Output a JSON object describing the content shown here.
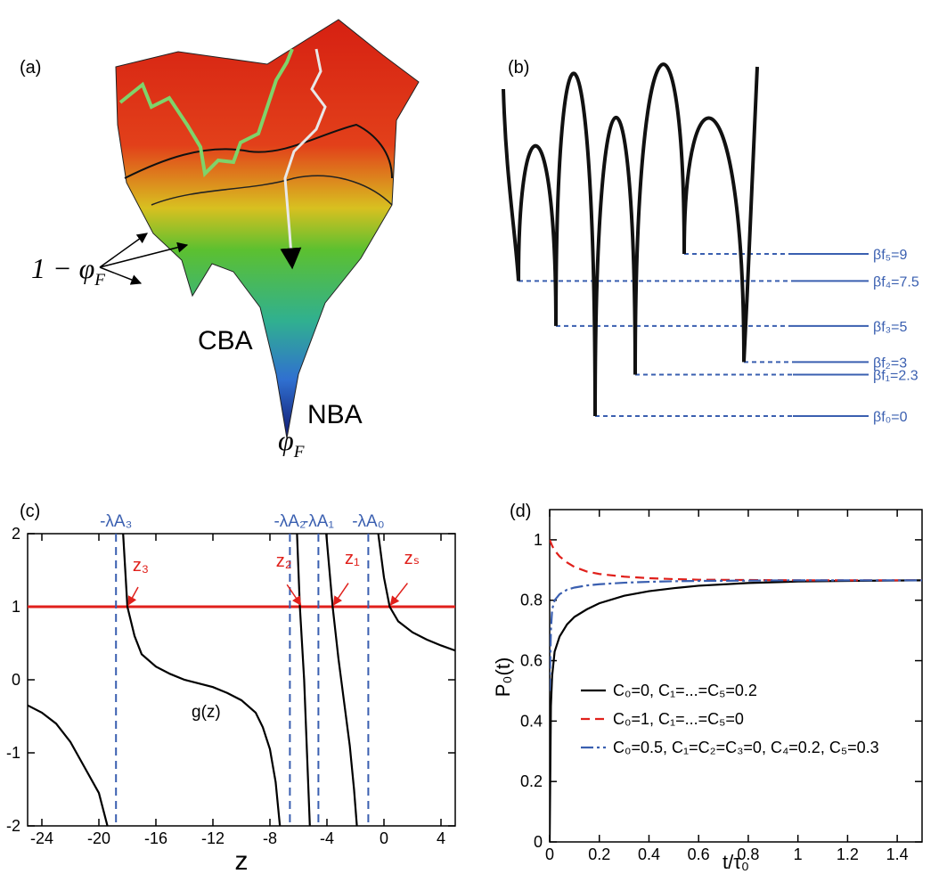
{
  "chart_data": [
    {
      "type": "image",
      "label": "(a)",
      "annotations": [
        {
          "text": "1 − φ",
          "sub": "F"
        },
        {
          "text": "CBA"
        },
        {
          "text": "NBA"
        },
        {
          "text": "φ",
          "sub": "F"
        }
      ]
    },
    {
      "type": "levels",
      "label": "(b)",
      "color": "#3a5fb0",
      "levels": [
        {
          "value": 9,
          "label": "βf₅=9"
        },
        {
          "value": 7.5,
          "label": "βf₄=7.5"
        },
        {
          "value": 5,
          "label": "βf₃=5"
        },
        {
          "value": 3,
          "label": "βf₂=3"
        },
        {
          "value": 2.3,
          "label": "βf₁=2.3"
        },
        {
          "value": 0,
          "label": "βf₀=0"
        }
      ]
    },
    {
      "type": "line",
      "label": "(c)",
      "xlabel": "z",
      "xlim": [
        -25,
        5
      ],
      "ylim": [
        -2,
        2
      ],
      "xticks": [
        -24,
        -20,
        -16,
        -12,
        -8,
        -4,
        0,
        4
      ],
      "yticks": [
        -2,
        -1,
        0,
        1,
        2
      ],
      "x": [
        -25,
        -24,
        -23,
        -22,
        -21,
        -20,
        -19.6,
        -19.4,
        -18.8,
        -18.3,
        -18,
        -17.5,
        -17,
        -16,
        -15,
        -14,
        -13,
        -12,
        -11,
        -10,
        -9,
        -8.5,
        -8,
        -7.6,
        -7.3,
        -6.6,
        -6.1,
        -5.9,
        -5.6,
        -5.4,
        -5.2,
        -4.6,
        -4.05,
        -3.6,
        -3.2,
        -2.8,
        -2.4,
        -2.1,
        -1.9,
        -1.1,
        -0.4,
        0,
        0.4,
        1,
        2,
        3,
        4,
        5
      ],
      "series": [
        {
          "name": "g(z)",
          "color": "#000000",
          "style": "solid",
          "values": [
            -0.35,
            -0.45,
            -0.6,
            -0.85,
            -1.2,
            -1.55,
            -1.85,
            -2,
            null,
            2,
            1,
            0.6,
            0.35,
            0.18,
            0.08,
            0,
            -0.05,
            -0.1,
            -0.18,
            -0.28,
            -0.45,
            -0.65,
            -0.95,
            -1.4,
            -2,
            null,
            2,
            1,
            0,
            -1,
            -2,
            null,
            2,
            1,
            0.3,
            -0.3,
            -0.9,
            -1.5,
            -2,
            null,
            2,
            1.4,
            1,
            0.8,
            0.65,
            0.55,
            0.47,
            0.4
          ]
        }
      ],
      "hlines": [
        {
          "value": 1,
          "color": "#e0201b"
        }
      ],
      "vlines": [
        {
          "x": -18.8,
          "label": "-λA₃"
        },
        {
          "x": -6.6,
          "label": "-λA₂"
        },
        {
          "x": -4.6,
          "label": "-λA₁"
        },
        {
          "x": -1.1,
          "label": "-λA₀"
        }
      ],
      "vline_color": "#3a5fb0",
      "annotations": [
        {
          "text": "z₃",
          "x": -18,
          "y": 1
        },
        {
          "text": "z₂",
          "x": -5.9,
          "y": 1
        },
        {
          "text": "z₁",
          "x": -3.6,
          "y": 1
        },
        {
          "text": "zₛ",
          "x": 0.4,
          "y": 1
        }
      ],
      "annotation_color": "#e0201b"
    },
    {
      "type": "line",
      "label": "(d)",
      "xlabel": "t/τ₀",
      "ylabel": "P₀(t)",
      "xlim": [
        0,
        1.5
      ],
      "ylim": [
        0,
        1.1
      ],
      "xticks": [
        0,
        0.2,
        0.4,
        0.6,
        0.8,
        1,
        1.2,
        1.4
      ],
      "yticks": [
        0,
        0.2,
        0.4,
        0.6,
        0.8,
        1
      ],
      "x": [
        0,
        0.005,
        0.01,
        0.02,
        0.04,
        0.07,
        0.1,
        0.15,
        0.2,
        0.3,
        0.4,
        0.5,
        0.6,
        0.8,
        1,
        1.2,
        1.5
      ],
      "legend": "lower right",
      "series": [
        {
          "name": "C₀=0, C₁=...=C₅=0.2",
          "color": "#000000",
          "style": "solid",
          "values": [
            0,
            0.45,
            0.55,
            0.63,
            0.68,
            0.72,
            0.745,
            0.77,
            0.79,
            0.815,
            0.83,
            0.84,
            0.848,
            0.857,
            0.862,
            0.864,
            0.866
          ]
        },
        {
          "name": "C₀=1, C₁=...=C₅=0",
          "color": "#e0201b",
          "style": "dashed",
          "values": [
            1,
            0.99,
            0.98,
            0.965,
            0.945,
            0.925,
            0.91,
            0.895,
            0.887,
            0.878,
            0.873,
            0.87,
            0.868,
            0.867,
            0.866,
            0.866,
            0.866
          ]
        },
        {
          "name": "C₀=0.5, C₁=C₂=C₃=0, C₄=0.2, C₅=0.3",
          "color": "#3a5fb0",
          "style": "dashdot",
          "values": [
            0.5,
            0.7,
            0.77,
            0.8,
            0.82,
            0.835,
            0.842,
            0.849,
            0.853,
            0.858,
            0.861,
            0.863,
            0.864,
            0.865,
            0.866,
            0.866,
            0.866
          ]
        }
      ]
    }
  ]
}
